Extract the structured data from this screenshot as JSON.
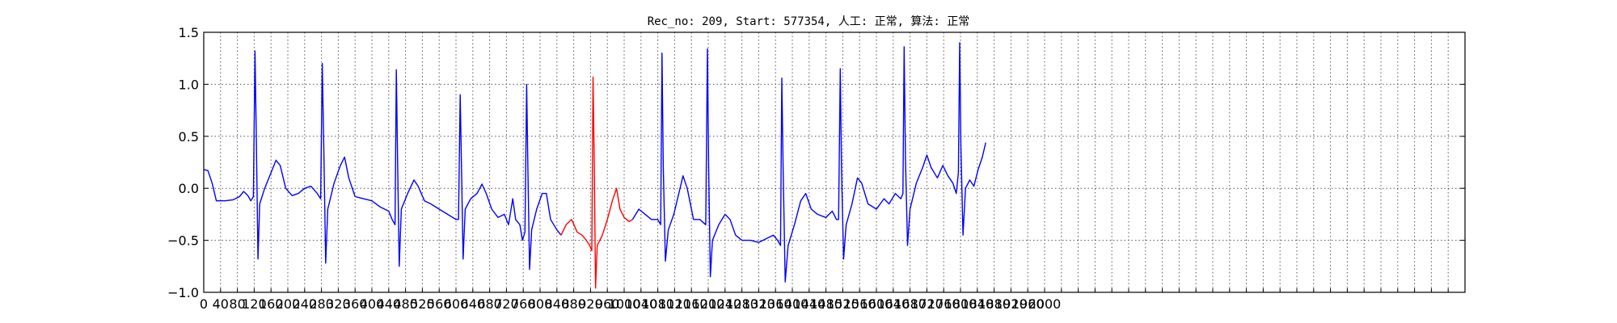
{
  "chart_data": {
    "type": "line",
    "title": "Rec_no: 209, Start: 577354, 人工: 正常, 算法: 正常",
    "xlabel": "",
    "ylabel": "",
    "xlim": [
      0,
      3000
    ],
    "ylim": [
      -1.0,
      1.5
    ],
    "yticks": [
      {
        "value": -1.0,
        "label": "−1.0"
      },
      {
        "value": -0.5,
        "label": "−0.5"
      },
      {
        "value": 0.0,
        "label": "0.0"
      },
      {
        "value": 0.5,
        "label": "0.5"
      },
      {
        "value": 1.0,
        "label": "1.0"
      },
      {
        "value": 1.5,
        "label": "1.5"
      }
    ],
    "xtick_step": 40,
    "xtick_label_max": 2000,
    "grid": true,
    "grid_style": "dotted",
    "colors": {
      "normal": "#0000ff",
      "highlight": "#ff0000",
      "grid": "#555555",
      "axes": "#000000"
    },
    "segments": [
      {
        "color": "normal",
        "points": [
          [
            0,
            0.18
          ],
          [
            10,
            0.17
          ],
          [
            20,
            0.05
          ],
          [
            30,
            -0.12
          ],
          [
            50,
            -0.12
          ],
          [
            70,
            -0.11
          ],
          [
            85,
            -0.08
          ],
          [
            95,
            -0.03
          ],
          [
            105,
            -0.07
          ],
          [
            112,
            -0.12
          ],
          [
            118,
            -0.08
          ],
          [
            122,
            1.32
          ],
          [
            125,
            0.5
          ],
          [
            129,
            -0.68
          ],
          [
            133,
            -0.15
          ],
          [
            145,
            0.0
          ],
          [
            160,
            0.15
          ],
          [
            172,
            0.27
          ],
          [
            182,
            0.22
          ],
          [
            195,
            0.0
          ],
          [
            210,
            -0.07
          ],
          [
            225,
            -0.05
          ],
          [
            240,
            0.0
          ],
          [
            255,
            0.02
          ],
          [
            270,
            -0.05
          ],
          [
            278,
            -0.1
          ],
          [
            282,
            1.2
          ],
          [
            286,
            0.3
          ],
          [
            290,
            -0.72
          ],
          [
            295,
            -0.2
          ],
          [
            310,
            0.05
          ],
          [
            325,
            0.22
          ],
          [
            335,
            0.3
          ],
          [
            345,
            0.1
          ],
          [
            360,
            -0.08
          ],
          [
            380,
            -0.1
          ],
          [
            400,
            -0.12
          ],
          [
            420,
            -0.18
          ],
          [
            440,
            -0.22
          ],
          [
            448,
            -0.3
          ],
          [
            455,
            -0.35
          ],
          [
            458,
            1.14
          ],
          [
            461,
            0.3
          ],
          [
            465,
            -0.75
          ],
          [
            470,
            -0.2
          ],
          [
            485,
            -0.05
          ],
          [
            500,
            0.08
          ],
          [
            510,
            0.02
          ],
          [
            525,
            -0.12
          ],
          [
            540,
            -0.15
          ],
          [
            560,
            -0.2
          ],
          [
            580,
            -0.25
          ],
          [
            600,
            -0.3
          ],
          [
            606,
            -0.3
          ],
          [
            610,
            0.9
          ],
          [
            613,
            0.2
          ],
          [
            617,
            -0.68
          ],
          [
            622,
            -0.2
          ],
          [
            635,
            -0.1
          ],
          [
            650,
            -0.05
          ],
          [
            662,
            0.04
          ],
          [
            672,
            -0.05
          ],
          [
            685,
            -0.2
          ],
          [
            700,
            -0.28
          ],
          [
            715,
            -0.25
          ],
          [
            725,
            -0.35
          ],
          [
            735,
            -0.1
          ],
          [
            742,
            -0.3
          ],
          [
            752,
            -0.35
          ],
          [
            758,
            -0.5
          ],
          [
            764,
            -0.42
          ],
          [
            768,
            1.0
          ],
          [
            771,
            0.2
          ],
          [
            775,
            -0.78
          ],
          [
            780,
            -0.4
          ],
          [
            792,
            -0.2
          ],
          [
            805,
            -0.05
          ],
          [
            815,
            -0.05
          ],
          [
            825,
            -0.3
          ],
          [
            840,
            -0.4
          ],
          [
            850,
            -0.45
          ]
        ]
      },
      {
        "color": "highlight",
        "points": [
          [
            850,
            -0.45
          ],
          [
            862,
            -0.35
          ],
          [
            875,
            -0.3
          ],
          [
            888,
            -0.42
          ],
          [
            900,
            -0.45
          ],
          [
            910,
            -0.5
          ],
          [
            918,
            -0.55
          ],
          [
            923,
            -0.6
          ],
          [
            926,
            1.07
          ],
          [
            929,
            0.2
          ],
          [
            932,
            -0.96
          ],
          [
            936,
            -0.55
          ],
          [
            948,
            -0.45
          ],
          [
            960,
            -0.3
          ],
          [
            972,
            -0.12
          ],
          [
            982,
            0.0
          ],
          [
            990,
            -0.2
          ],
          [
            1000,
            -0.28
          ],
          [
            1012,
            -0.32
          ],
          [
            1020,
            -0.3
          ]
        ]
      },
      {
        "color": "normal",
        "points": [
          [
            1020,
            -0.3
          ],
          [
            1035,
            -0.2
          ],
          [
            1050,
            -0.25
          ],
          [
            1065,
            -0.3
          ],
          [
            1080,
            -0.3
          ],
          [
            1087,
            -0.35
          ],
          [
            1090,
            1.3
          ],
          [
            1093,
            0.2
          ],
          [
            1098,
            -0.7
          ],
          [
            1105,
            -0.4
          ],
          [
            1118,
            -0.25
          ],
          [
            1130,
            -0.05
          ],
          [
            1140,
            0.12
          ],
          [
            1150,
            0.0
          ],
          [
            1165,
            -0.3
          ],
          [
            1180,
            -0.3
          ],
          [
            1194,
            -0.35
          ],
          [
            1198,
            1.34
          ],
          [
            1201,
            0.2
          ],
          [
            1205,
            -0.85
          ],
          [
            1210,
            -0.5
          ],
          [
            1225,
            -0.35
          ],
          [
            1240,
            -0.25
          ],
          [
            1252,
            -0.3
          ],
          [
            1265,
            -0.45
          ],
          [
            1280,
            -0.5
          ],
          [
            1300,
            -0.5
          ],
          [
            1320,
            -0.52
          ],
          [
            1340,
            -0.48
          ],
          [
            1355,
            -0.45
          ],
          [
            1365,
            -0.5
          ],
          [
            1372,
            -0.55
          ],
          [
            1375,
            1.06
          ],
          [
            1378,
            0.2
          ],
          [
            1383,
            -0.9
          ],
          [
            1390,
            -0.55
          ],
          [
            1405,
            -0.35
          ],
          [
            1420,
            -0.12
          ],
          [
            1432,
            -0.05
          ],
          [
            1445,
            -0.2
          ],
          [
            1460,
            -0.25
          ],
          [
            1480,
            -0.28
          ],
          [
            1495,
            -0.22
          ],
          [
            1505,
            -0.3
          ],
          [
            1510,
            -0.3
          ],
          [
            1514,
            1.15
          ],
          [
            1517,
            0.2
          ],
          [
            1522,
            -0.68
          ],
          [
            1528,
            -0.35
          ],
          [
            1542,
            -0.15
          ],
          [
            1555,
            0.1
          ],
          [
            1565,
            0.05
          ],
          [
            1580,
            -0.15
          ],
          [
            1600,
            -0.2
          ],
          [
            1618,
            -0.1
          ],
          [
            1630,
            -0.15
          ],
          [
            1645,
            -0.05
          ],
          [
            1658,
            -0.1
          ],
          [
            1663,
            -0.05
          ],
          [
            1666,
            1.36
          ],
          [
            1669,
            0.3
          ],
          [
            1674,
            -0.55
          ],
          [
            1680,
            -0.2
          ],
          [
            1695,
            0.05
          ],
          [
            1710,
            0.2
          ],
          [
            1720,
            0.32
          ],
          [
            1730,
            0.2
          ],
          [
            1745,
            0.1
          ],
          [
            1758,
            0.22
          ],
          [
            1770,
            0.12
          ],
          [
            1782,
            0.05
          ],
          [
            1790,
            -0.05
          ],
          [
            1795,
            0.15
          ],
          [
            1798,
            1.4
          ],
          [
            1801,
            0.4
          ],
          [
            1806,
            -0.45
          ],
          [
            1812,
            0.0
          ],
          [
            1822,
            0.08
          ],
          [
            1832,
            0.02
          ],
          [
            1842,
            0.18
          ],
          [
            1852,
            0.3
          ],
          [
            1860,
            0.44
          ]
        ]
      }
    ]
  }
}
